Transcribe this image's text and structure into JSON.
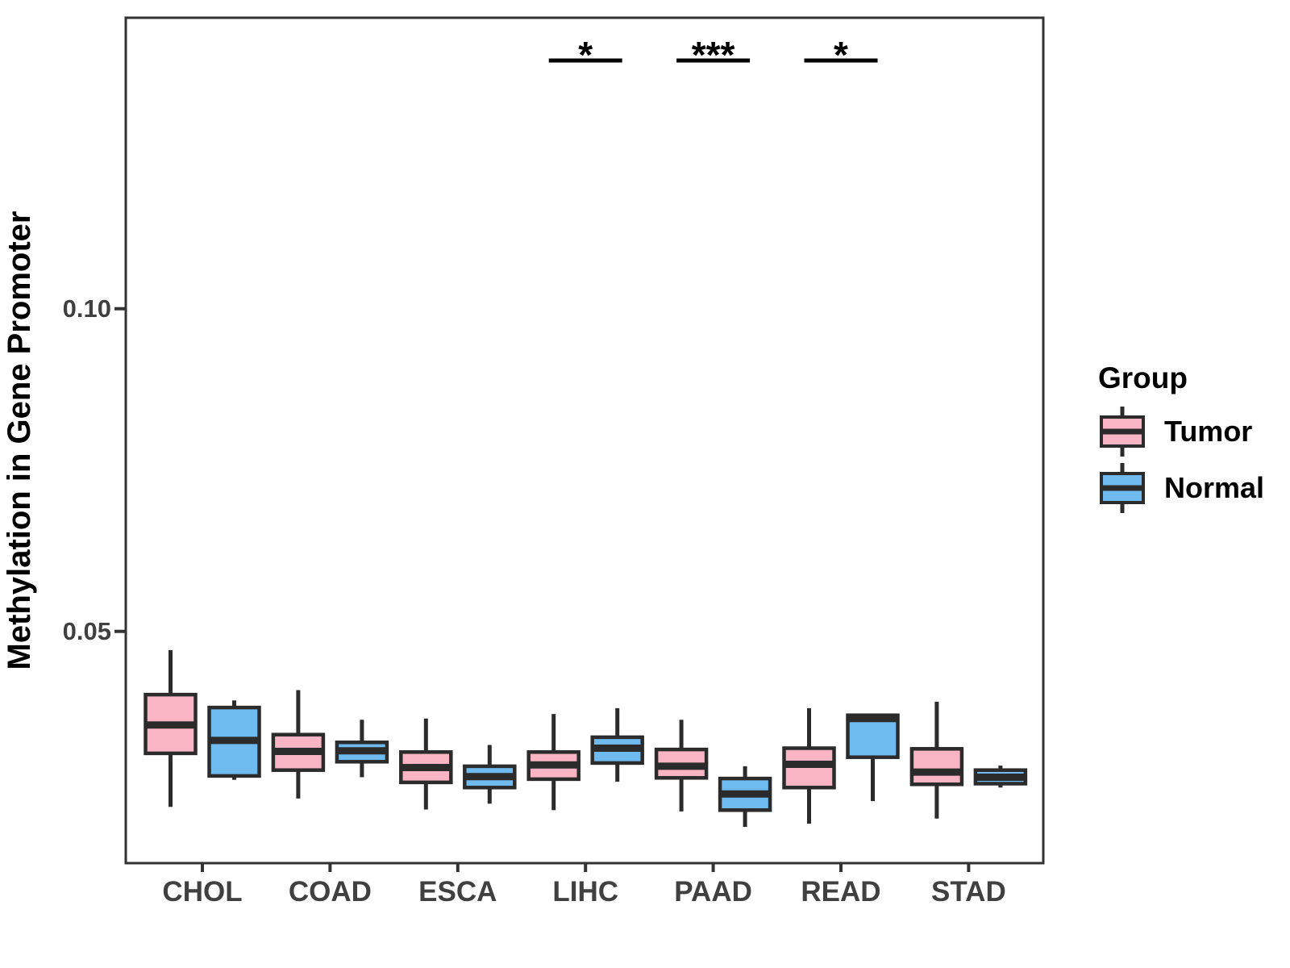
{
  "figure": {
    "background": "#FFFFFF"
  },
  "chart_data": {
    "type": "grouped_boxplot",
    "title": "",
    "xlabel": "",
    "ylabel": "Methylation in Gene Promoter",
    "categories": [
      "CHOL",
      "COAD",
      "ESCA",
      "LIHC",
      "PAAD",
      "READ",
      "STAD"
    ],
    "groups": [
      "Tumor",
      "Normal"
    ],
    "grid": false,
    "legend_position": "right",
    "ylim": [
      0.014,
      0.145
    ],
    "yticks": [
      {
        "value": 0.05,
        "label": "0.05"
      },
      {
        "value": 0.1,
        "label": "0.10"
      }
    ],
    "stroke_color": "#2B2B2B",
    "axis_color": "#333333",
    "axis_text_color": "#404040",
    "series": [
      {
        "name": "Tumor",
        "color": "#F9B5C4",
        "boxes": [
          {
            "category": "CHOL",
            "min": 0.0228,
            "q1": 0.0311,
            "median": 0.0355,
            "q3": 0.0402,
            "max": 0.0471
          },
          {
            "category": "COAD",
            "min": 0.0241,
            "q1": 0.0285,
            "median": 0.0314,
            "q3": 0.034,
            "max": 0.0409
          },
          {
            "category": "ESCA",
            "min": 0.0224,
            "q1": 0.0266,
            "median": 0.0289,
            "q3": 0.0313,
            "max": 0.0365
          },
          {
            "category": "LIHC",
            "min": 0.0223,
            "q1": 0.0271,
            "median": 0.0293,
            "q3": 0.0313,
            "max": 0.0372
          },
          {
            "category": "PAAD",
            "min": 0.0221,
            "q1": 0.0273,
            "median": 0.0291,
            "q3": 0.0317,
            "max": 0.0363
          },
          {
            "category": "READ",
            "min": 0.0202,
            "q1": 0.0258,
            "median": 0.0294,
            "q3": 0.0319,
            "max": 0.0381
          },
          {
            "category": "STAD",
            "min": 0.021,
            "q1": 0.0263,
            "median": 0.0282,
            "q3": 0.0318,
            "max": 0.0391
          }
        ]
      },
      {
        "name": "Normal",
        "color": "#6FBBF0",
        "boxes": [
          {
            "category": "CHOL",
            "min": 0.027,
            "q1": 0.0276,
            "median": 0.0331,
            "q3": 0.0382,
            "max": 0.0393
          },
          {
            "category": "COAD",
            "min": 0.0274,
            "q1": 0.0298,
            "median": 0.0315,
            "q3": 0.0328,
            "max": 0.0363
          },
          {
            "category": "ESCA",
            "min": 0.0233,
            "q1": 0.0258,
            "median": 0.0275,
            "q3": 0.0291,
            "max": 0.0324
          },
          {
            "category": "LIHC",
            "min": 0.0267,
            "q1": 0.0296,
            "median": 0.0319,
            "q3": 0.0336,
            "max": 0.0381
          },
          {
            "category": "PAAD",
            "min": 0.0197,
            "q1": 0.0223,
            "median": 0.0248,
            "q3": 0.0272,
            "max": 0.0291
          },
          {
            "category": "READ",
            "min": 0.0237,
            "q1": 0.0305,
            "median": 0.0365,
            "q3": 0.037,
            "max": 0.0372
          },
          {
            "category": "STAD",
            "min": 0.0258,
            "q1": 0.0264,
            "median": 0.0274,
            "q3": 0.0285,
            "max": 0.0292
          }
        ]
      }
    ],
    "significance": [
      {
        "category": "LIHC",
        "label": "*"
      },
      {
        "category": "PAAD",
        "label": "***"
      },
      {
        "category": "READ",
        "label": "*"
      }
    ]
  },
  "legend": {
    "title": "Group",
    "items": [
      {
        "label": "Tumor",
        "color": "#F9B5C4"
      },
      {
        "label": "Normal",
        "color": "#6FBBF0"
      }
    ]
  }
}
